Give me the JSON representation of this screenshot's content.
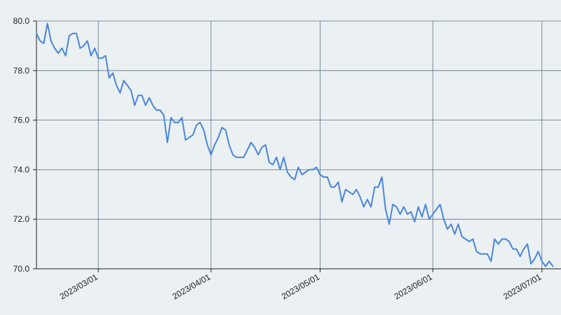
{
  "chart_data": {
    "type": "line",
    "title": "",
    "xlabel": "",
    "ylabel": "",
    "grid": true,
    "legend": "none",
    "x_range": [
      "2023-02-12",
      "2023-07-02"
    ],
    "ylim": [
      70.0,
      80.0
    ],
    "y_ticks": [
      "70.0",
      "72.0",
      "74.0",
      "76.0",
      "78.0",
      "80.0"
    ],
    "x_ticks": [
      {
        "date": "2023-03-01",
        "label": "2023/03/01"
      },
      {
        "date": "2023-04-01",
        "label": "2023/04/01"
      },
      {
        "date": "2023-05-01",
        "label": "2023/05/01"
      },
      {
        "date": "2023-06-01",
        "label": "2023/06/01"
      },
      {
        "date": "2023-07-01",
        "label": "2023/07/01"
      }
    ],
    "colors": {
      "line": "#4a86d9",
      "grid": "#5b7086",
      "background": "#ebf0f2",
      "axis": "#222222"
    },
    "series": [
      {
        "points": [
          [
            "2023-02-12",
            79.5
          ],
          [
            "2023-02-13",
            79.2
          ],
          [
            "2023-02-14",
            79.1
          ],
          [
            "2023-02-15",
            79.9
          ],
          [
            "2023-02-16",
            79.2
          ],
          [
            "2023-02-17",
            78.9
          ],
          [
            "2023-02-18",
            78.7
          ],
          [
            "2023-02-19",
            78.9
          ],
          [
            "2023-02-20",
            78.6
          ],
          [
            "2023-02-21",
            79.4
          ],
          [
            "2023-02-22",
            79.5
          ],
          [
            "2023-02-23",
            79.5
          ],
          [
            "2023-02-24",
            78.9
          ],
          [
            "2023-02-25",
            79.0
          ],
          [
            "2023-02-26",
            79.2
          ],
          [
            "2023-02-27",
            78.6
          ],
          [
            "2023-02-28",
            78.9
          ],
          [
            "2023-03-01",
            78.5
          ],
          [
            "2023-03-02",
            78.5
          ],
          [
            "2023-03-03",
            78.6
          ],
          [
            "2023-03-04",
            77.7
          ],
          [
            "2023-03-05",
            77.9
          ],
          [
            "2023-03-06",
            77.4
          ],
          [
            "2023-03-07",
            77.1
          ],
          [
            "2023-03-08",
            77.6
          ],
          [
            "2023-03-09",
            77.4
          ],
          [
            "2023-03-10",
            77.2
          ],
          [
            "2023-03-11",
            76.6
          ],
          [
            "2023-03-12",
            77.0
          ],
          [
            "2023-03-13",
            77.0
          ],
          [
            "2023-03-14",
            76.6
          ],
          [
            "2023-03-15",
            76.9
          ],
          [
            "2023-03-16",
            76.6
          ],
          [
            "2023-03-17",
            76.4
          ],
          [
            "2023-03-18",
            76.4
          ],
          [
            "2023-03-19",
            76.2
          ],
          [
            "2023-03-20",
            75.1
          ],
          [
            "2023-03-21",
            76.1
          ],
          [
            "2023-03-22",
            75.9
          ],
          [
            "2023-03-23",
            75.9
          ],
          [
            "2023-03-24",
            76.1
          ],
          [
            "2023-03-25",
            75.2
          ],
          [
            "2023-03-26",
            75.3
          ],
          [
            "2023-03-27",
            75.4
          ],
          [
            "2023-03-28",
            75.8
          ],
          [
            "2023-03-29",
            75.9
          ],
          [
            "2023-03-30",
            75.6
          ],
          [
            "2023-03-31",
            75.0
          ],
          [
            "2023-04-01",
            74.6
          ],
          [
            "2023-04-02",
            75.0
          ],
          [
            "2023-04-03",
            75.3
          ],
          [
            "2023-04-04",
            75.7
          ],
          [
            "2023-04-05",
            75.6
          ],
          [
            "2023-04-06",
            75.0
          ],
          [
            "2023-04-07",
            74.6
          ],
          [
            "2023-04-08",
            74.5
          ],
          [
            "2023-04-09",
            74.5
          ],
          [
            "2023-04-10",
            74.5
          ],
          [
            "2023-04-11",
            74.8
          ],
          [
            "2023-04-12",
            75.1
          ],
          [
            "2023-04-13",
            74.9
          ],
          [
            "2023-04-14",
            74.6
          ],
          [
            "2023-04-15",
            74.9
          ],
          [
            "2023-04-16",
            75.0
          ],
          [
            "2023-04-17",
            74.3
          ],
          [
            "2023-04-18",
            74.2
          ],
          [
            "2023-04-19",
            74.5
          ],
          [
            "2023-04-20",
            74.0
          ],
          [
            "2023-04-21",
            74.5
          ],
          [
            "2023-04-22",
            73.9
          ],
          [
            "2023-04-23",
            73.7
          ],
          [
            "2023-04-24",
            73.6
          ],
          [
            "2023-04-25",
            74.1
          ],
          [
            "2023-04-26",
            73.8
          ],
          [
            "2023-04-27",
            73.9
          ],
          [
            "2023-04-28",
            74.0
          ],
          [
            "2023-04-29",
            74.0
          ],
          [
            "2023-04-30",
            74.1
          ],
          [
            "2023-05-01",
            73.8
          ],
          [
            "2023-05-02",
            73.7
          ],
          [
            "2023-05-03",
            73.7
          ],
          [
            "2023-05-04",
            73.3
          ],
          [
            "2023-05-05",
            73.3
          ],
          [
            "2023-05-06",
            73.5
          ],
          [
            "2023-05-07",
            72.7
          ],
          [
            "2023-05-08",
            73.2
          ],
          [
            "2023-05-09",
            73.1
          ],
          [
            "2023-05-10",
            73.0
          ],
          [
            "2023-05-11",
            73.2
          ],
          [
            "2023-05-12",
            72.9
          ],
          [
            "2023-05-13",
            72.5
          ],
          [
            "2023-05-14",
            72.8
          ],
          [
            "2023-05-15",
            72.5
          ],
          [
            "2023-05-16",
            73.3
          ],
          [
            "2023-05-17",
            73.3
          ],
          [
            "2023-05-18",
            73.7
          ],
          [
            "2023-05-19",
            72.4
          ],
          [
            "2023-05-20",
            71.8
          ],
          [
            "2023-05-21",
            72.6
          ],
          [
            "2023-05-22",
            72.5
          ],
          [
            "2023-05-23",
            72.2
          ],
          [
            "2023-05-24",
            72.5
          ],
          [
            "2023-05-25",
            72.2
          ],
          [
            "2023-05-26",
            72.3
          ],
          [
            "2023-05-27",
            71.9
          ],
          [
            "2023-05-28",
            72.5
          ],
          [
            "2023-05-29",
            72.1
          ],
          [
            "2023-05-30",
            72.6
          ],
          [
            "2023-05-31",
            72.0
          ],
          [
            "2023-06-01",
            72.2
          ],
          [
            "2023-06-02",
            72.4
          ],
          [
            "2023-06-03",
            72.6
          ],
          [
            "2023-06-04",
            72.0
          ],
          [
            "2023-06-05",
            71.6
          ],
          [
            "2023-06-06",
            71.8
          ],
          [
            "2023-06-07",
            71.4
          ],
          [
            "2023-06-08",
            71.8
          ],
          [
            "2023-06-09",
            71.3
          ],
          [
            "2023-06-10",
            71.2
          ],
          [
            "2023-06-11",
            71.1
          ],
          [
            "2023-06-12",
            71.2
          ],
          [
            "2023-06-13",
            70.7
          ],
          [
            "2023-06-14",
            70.6
          ],
          [
            "2023-06-15",
            70.6
          ],
          [
            "2023-06-16",
            70.6
          ],
          [
            "2023-06-17",
            70.3
          ],
          [
            "2023-06-18",
            71.2
          ],
          [
            "2023-06-19",
            71.0
          ],
          [
            "2023-06-20",
            71.2
          ],
          [
            "2023-06-21",
            71.2
          ],
          [
            "2023-06-22",
            71.1
          ],
          [
            "2023-06-23",
            70.8
          ],
          [
            "2023-06-24",
            70.8
          ],
          [
            "2023-06-25",
            70.5
          ],
          [
            "2023-06-26",
            70.8
          ],
          [
            "2023-06-27",
            71.0
          ],
          [
            "2023-06-28",
            70.2
          ],
          [
            "2023-06-29",
            70.4
          ],
          [
            "2023-06-30",
            70.7
          ],
          [
            "2023-07-01",
            70.3
          ],
          [
            "2023-07-02",
            70.1
          ],
          [
            "2023-07-03",
            70.3
          ],
          [
            "2023-07-04",
            70.1
          ]
        ]
      }
    ]
  }
}
